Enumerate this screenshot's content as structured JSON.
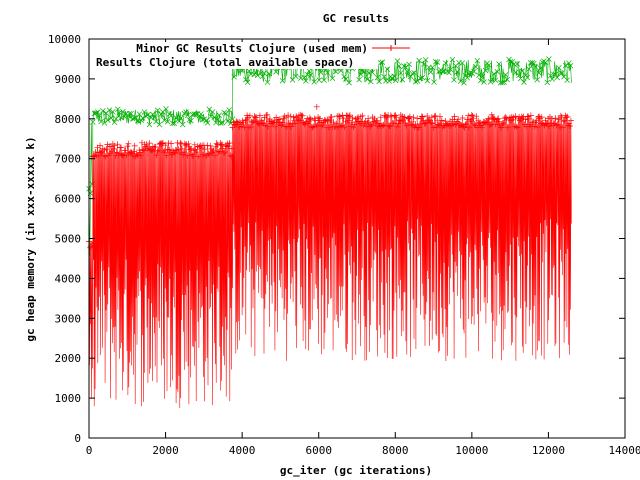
{
  "chart_data": {
    "type": "line",
    "title": "GC results",
    "xlabel": "gc_iter (gc iterations)",
    "ylabel": "gc heap memory (in xxx-xxxxx k)",
    "xlim": [
      0,
      14000
    ],
    "ylim": [
      0,
      10000
    ],
    "x_ticks": [
      0,
      2000,
      4000,
      6000,
      8000,
      10000,
      12000,
      14000
    ],
    "y_ticks": [
      0,
      1000,
      2000,
      3000,
      4000,
      5000,
      6000,
      7000,
      8000,
      9000,
      10000
    ],
    "x_tick_labels": [
      "0",
      "2000",
      "4000",
      "6000",
      "8000",
      "10000",
      "12000",
      "14000"
    ],
    "y_tick_labels": [
      "0",
      "1000",
      "2000",
      "3000",
      "4000",
      "5000",
      "6000",
      "7000",
      "8000",
      "9000",
      "10000"
    ],
    "grid": false,
    "legend_position": "top-left",
    "series": [
      {
        "name": "Minor GC Results Clojure (used mem)",
        "color": "#ff0000",
        "marker": "plus",
        "segments": [
          {
            "x_range": [
              0,
              100
            ],
            "y_range": [
              300,
              5000
            ]
          },
          {
            "x_range": [
              100,
              3750
            ],
            "y_range": [
              400,
              7400
            ]
          },
          {
            "x_range": [
              3750,
              12600
            ],
            "y_range": [
              1600,
              8100
            ]
          }
        ],
        "spike": {
          "x": 5950,
          "y": 8300
        }
      },
      {
        "name": "Results Clojure (total available space)",
        "color": "#00b000",
        "marker": "x",
        "segments": [
          {
            "x_range": [
              0,
              100
            ],
            "y_range": [
              3100,
              7900
            ]
          },
          {
            "x_range": [
              100,
              3750
            ],
            "y_range": [
              7850,
              8250
            ]
          },
          {
            "x_range": [
              3750,
              12600
            ],
            "y_range": [
              8900,
              9500
            ]
          }
        ]
      }
    ]
  }
}
